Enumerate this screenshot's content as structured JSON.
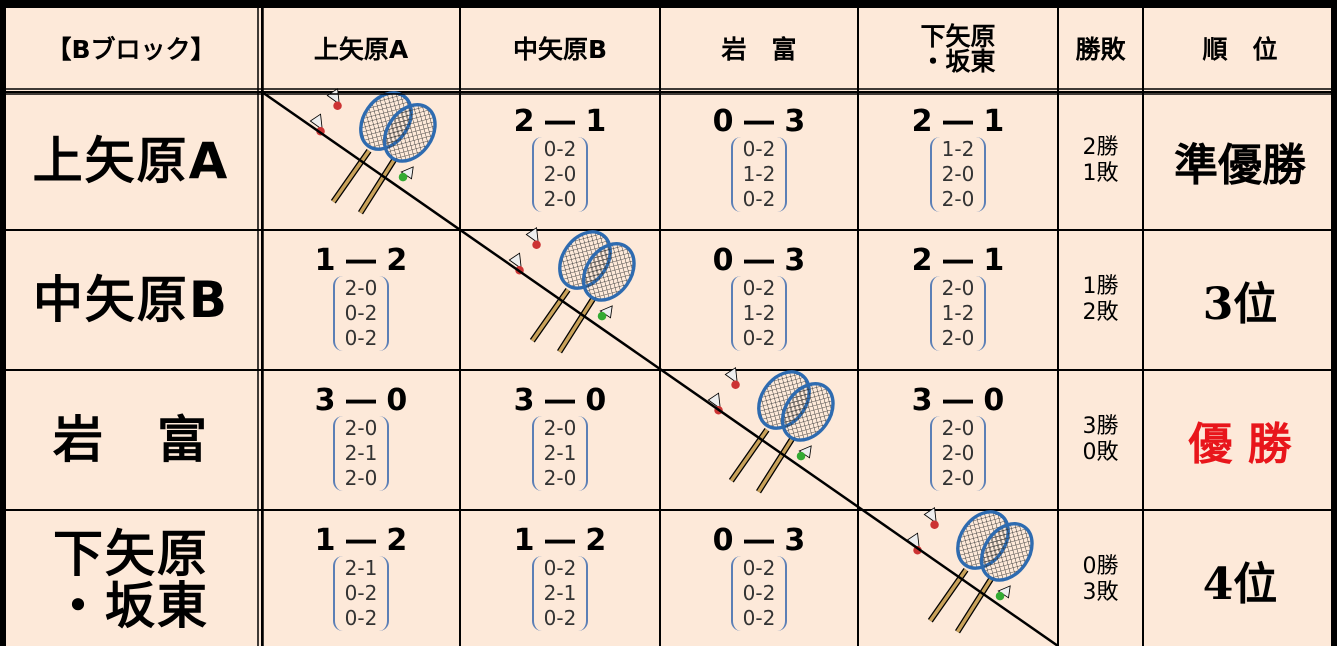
{
  "table": {
    "header": [
      "【Bブロック】",
      "上矢原A",
      "中矢原B",
      "岩　富",
      "下矢原\n・坂東",
      "勝敗",
      "順　位"
    ],
    "rows": [
      {
        "team": "上矢原A",
        "cells": [
          null,
          {
            "score": "2 ― 1",
            "games": [
              "0-2",
              "2-0",
              "2-0"
            ]
          },
          {
            "score": "0 ― 3",
            "games": [
              "0-2",
              "1-2",
              "0-2"
            ]
          },
          {
            "score": "2 ― 1",
            "games": [
              "1-2",
              "2-0",
              "2-0"
            ]
          }
        ],
        "record": "2勝\n1敗",
        "rank": "準優勝"
      },
      {
        "team": "中矢原B",
        "cells": [
          {
            "score": "1 ― 2",
            "games": [
              "2-0",
              "0-2",
              "0-2"
            ]
          },
          null,
          {
            "score": "0 ― 3",
            "games": [
              "0-2",
              "1-2",
              "0-2"
            ]
          },
          {
            "score": "2 ― 1",
            "games": [
              "2-0",
              "1-2",
              "2-0"
            ]
          }
        ],
        "record": "1勝\n2敗",
        "rank": "3位"
      },
      {
        "team": "岩　富",
        "cells": [
          {
            "score": "3 ― 0",
            "games": [
              "2-0",
              "2-1",
              "2-0"
            ]
          },
          {
            "score": "3 ― 0",
            "games": [
              "2-0",
              "2-1",
              "2-0"
            ]
          },
          null,
          {
            "score": "3 ― 0",
            "games": [
              "2-0",
              "2-0",
              "2-0"
            ]
          }
        ],
        "record": "3勝\n0敗",
        "rank": "優 勝",
        "rank_color": "#e8161b"
      },
      {
        "team": "下矢原\n・坂東",
        "cells": [
          {
            "score": "1 ― 2",
            "games": [
              "2-1",
              "0-2",
              "0-2"
            ]
          },
          {
            "score": "1 ― 2",
            "games": [
              "0-2",
              "2-1",
              "0-2"
            ]
          },
          {
            "score": "0 ― 3",
            "games": [
              "0-2",
              "0-2",
              "0-2"
            ]
          },
          null
        ],
        "record": "0勝\n3敗",
        "rank": "4位"
      }
    ]
  }
}
